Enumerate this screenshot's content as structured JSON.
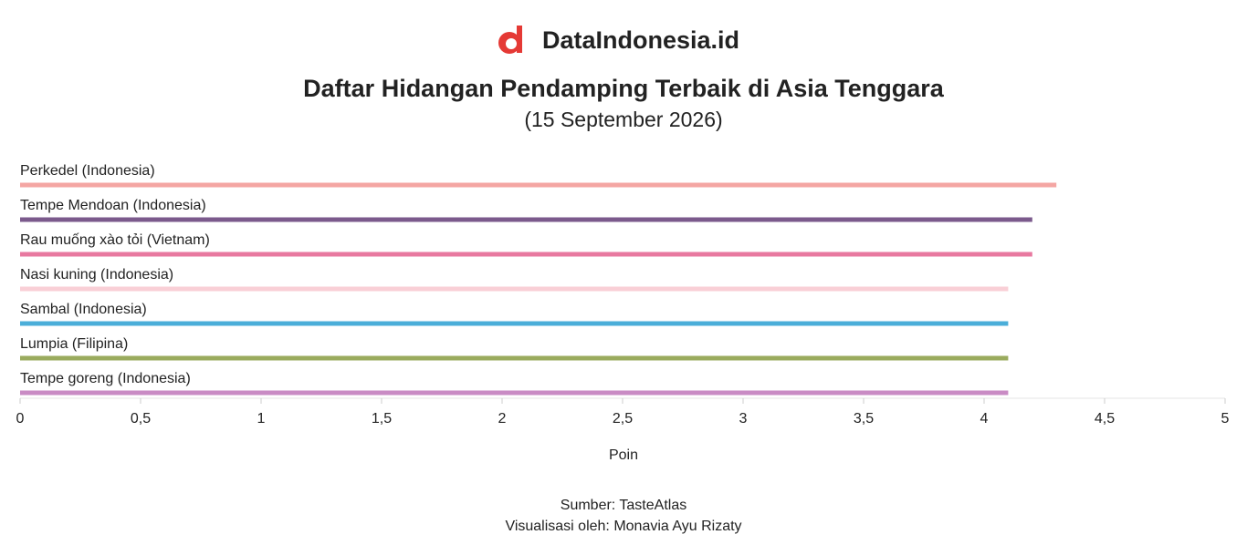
{
  "logo": "DataIndonesia.id",
  "chart_data": {
    "type": "bar",
    "orientation": "horizontal",
    "title": "Daftar Hidangan Pendamping Terbaik di Asia Tenggara",
    "subtitle": "(15 September 2026)",
    "categories": [
      "Perkedel (Indonesia)",
      "Tempe Mendoan (Indonesia)",
      "Rau muống xào tỏi (Vietnam)",
      "Nasi kuning (Indonesia)",
      "Sambal (Indonesia)",
      "Lumpia (Filipina)",
      "Tempe goreng (Indonesia)"
    ],
    "values": [
      4.3,
      4.2,
      4.2,
      4.1,
      4.1,
      4.1,
      4.1
    ],
    "colors": [
      "#f4a6a3",
      "#7b5a8c",
      "#e879a0",
      "#f9cfd6",
      "#4baed9",
      "#9aab5e",
      "#c98bc4"
    ],
    "xlim": [
      0,
      5
    ],
    "xticks": [
      0,
      {
        "value": 0.5,
        "label": "0,5"
      },
      1,
      {
        "value": 1.5,
        "label": "1,5"
      },
      2,
      {
        "value": 2.5,
        "label": "2,5"
      },
      3,
      {
        "value": 3.5,
        "label": "3,5"
      },
      4,
      {
        "value": 4.5,
        "label": "4,5"
      },
      5
    ],
    "xlabel": "Poin",
    "source": "Sumber: TasteAtlas",
    "credit": "Visualisasi oleh: Monavia Ayu Rizaty"
  }
}
